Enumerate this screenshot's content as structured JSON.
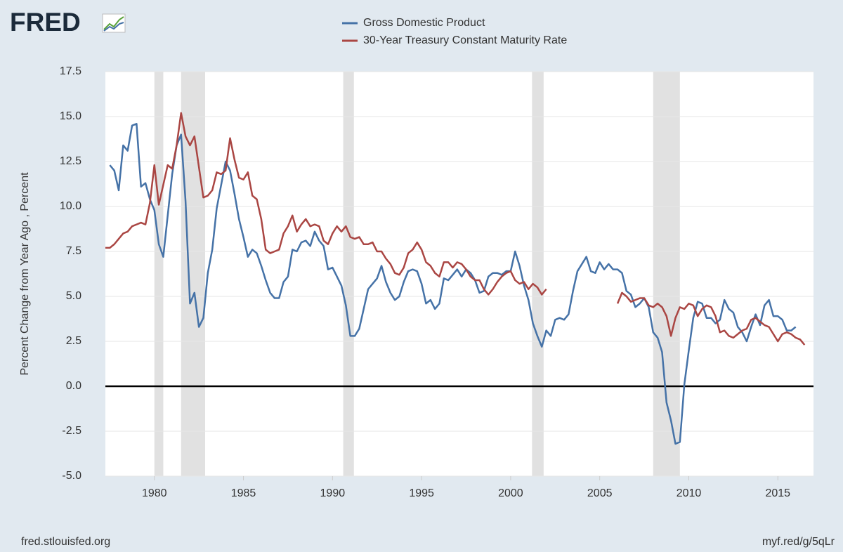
{
  "logo": "FRED",
  "source": "fred.stlouisfed.org",
  "link": "myf.red/g/5qLr",
  "chart_data": {
    "type": "line",
    "ylabel": "Percent Change from Year Ago , Percent",
    "xlim": [
      1977.25,
      2017.0
    ],
    "ylim": [
      -5,
      17.5
    ],
    "xticks": [
      1980,
      1985,
      1990,
      1995,
      2000,
      2005,
      2010,
      2015
    ],
    "yticks": [
      {
        "value": -5,
        "label": "-5.0"
      },
      -2.5,
      {
        "value": 0,
        "label": "0.0"
      },
      2.5,
      {
        "value": 5,
        "label": "5.0"
      },
      7.5,
      {
        "value": 10,
        "label": "10.0"
      },
      12.5,
      {
        "value": 15,
        "label": "15.0"
      },
      17.5
    ],
    "grid": true,
    "recessions": [
      [
        1980.0,
        1980.5
      ],
      [
        1981.5,
        1982.85
      ],
      [
        1990.6,
        1991.2
      ],
      [
        2001.2,
        2001.85
      ],
      [
        2008.0,
        2009.5
      ]
    ],
    "recession_color": "#e1e1e1",
    "series": [
      {
        "name": "Gross Domestic Product",
        "color": "#4572a7",
        "x": [
          1977.5,
          1977.75,
          1978,
          1978.25,
          1978.5,
          1978.75,
          1979,
          1979.25,
          1979.5,
          1979.75,
          1980,
          1980.25,
          1980.5,
          1980.75,
          1981,
          1981.25,
          1981.5,
          1981.75,
          1982,
          1982.25,
          1982.5,
          1982.75,
          1983,
          1983.25,
          1983.5,
          1983.75,
          1984,
          1984.25,
          1984.5,
          1984.75,
          1985,
          1985.25,
          1985.5,
          1985.75,
          1986,
          1986.25,
          1986.5,
          1986.75,
          1987,
          1987.25,
          1987.5,
          1987.75,
          1988,
          1988.25,
          1988.5,
          1988.75,
          1989,
          1989.25,
          1989.5,
          1989.75,
          1990,
          1990.25,
          1990.5,
          1990.75,
          1991,
          1991.25,
          1991.5,
          1991.75,
          1992,
          1992.25,
          1992.5,
          1992.75,
          1993,
          1993.25,
          1993.5,
          1993.75,
          1994,
          1994.25,
          1994.5,
          1994.75,
          1995,
          1995.25,
          1995.5,
          1995.75,
          1996,
          1996.25,
          1996.5,
          1996.75,
          1997,
          1997.25,
          1997.5,
          1997.75,
          1998,
          1998.25,
          1998.5,
          1998.75,
          1999,
          1999.25,
          1999.5,
          1999.75,
          2000,
          2000.25,
          2000.5,
          2000.75,
          2001,
          2001.25,
          2001.5,
          2001.75,
          2002,
          2002.25,
          2002.5,
          2002.75,
          2003,
          2003.25,
          2003.5,
          2003.75,
          2004,
          2004.25,
          2004.5,
          2004.75,
          2005,
          2005.25,
          2005.5,
          2005.75,
          2006,
          2006.25,
          2006.5,
          2006.75,
          2007,
          2007.25,
          2007.5,
          2007.75,
          2008,
          2008.25,
          2008.5,
          2008.75,
          2009,
          2009.25,
          2009.5,
          2009.75,
          2010,
          2010.25,
          2010.5,
          2010.75,
          2011,
          2011.25,
          2011.5,
          2011.75,
          2012,
          2012.25,
          2012.5,
          2012.75,
          2013,
          2013.25,
          2013.5,
          2013.75,
          2014,
          2014.25,
          2014.5,
          2014.75,
          2015,
          2015.25,
          2015.5,
          2015.75,
          2016
        ],
        "values": [
          12.3,
          12.0,
          10.9,
          13.4,
          13.1,
          14.5,
          14.6,
          11.1,
          11.3,
          10.4,
          9.8,
          7.9,
          7.2,
          9.5,
          11.8,
          13.4,
          14.0,
          10.3,
          4.6,
          5.2,
          3.3,
          3.8,
          6.3,
          7.6,
          9.9,
          11.2,
          12.5,
          12.0,
          10.7,
          9.3,
          8.3,
          7.2,
          7.6,
          7.4,
          6.7,
          5.9,
          5.2,
          4.9,
          4.9,
          5.8,
          6.1,
          7.6,
          7.5,
          8.0,
          8.1,
          7.8,
          8.6,
          8.1,
          7.8,
          6.5,
          6.6,
          6.1,
          5.6,
          4.5,
          2.8,
          2.8,
          3.2,
          4.3,
          5.4,
          5.7,
          6.0,
          6.7,
          5.8,
          5.2,
          4.8,
          5.0,
          5.8,
          6.4,
          6.5,
          6.4,
          5.7,
          4.6,
          4.8,
          4.3,
          4.6,
          6.0,
          5.9,
          6.2,
          6.5,
          6.1,
          6.5,
          6.3,
          5.9,
          5.2,
          5.3,
          6.1,
          6.3,
          6.3,
          6.2,
          6.4,
          6.4,
          7.5,
          6.7,
          5.6,
          4.8,
          3.5,
          2.8,
          2.2,
          3.1,
          2.8,
          3.7,
          3.8,
          3.7,
          4.0,
          5.3,
          6.4,
          6.8,
          7.2,
          6.4,
          6.3,
          6.9,
          6.5,
          6.8,
          6.5,
          6.5,
          6.3,
          5.3,
          5.1,
          4.4,
          4.6,
          4.9,
          4.4,
          3.0,
          2.7,
          1.9,
          -0.9,
          -1.9,
          -3.2,
          -3.1,
          0.1,
          2.0,
          3.8,
          4.7,
          4.6,
          3.8,
          3.8,
          3.5,
          3.7,
          4.8,
          4.3,
          4.1,
          3.3,
          3.0,
          2.5,
          3.3,
          4.0,
          3.4,
          4.5,
          4.8,
          3.9,
          3.9,
          3.7,
          3.1,
          3.1,
          3.3
        ]
      },
      {
        "name": "30-Year Treasury Constant Maturity Rate",
        "color": "#aa4643",
        "x": [
          1977.25,
          1977.5,
          1977.75,
          1978,
          1978.25,
          1978.5,
          1978.75,
          1979,
          1979.25,
          1979.5,
          1979.75,
          1980,
          1980.25,
          1980.5,
          1980.75,
          1981,
          1981.25,
          1981.5,
          1981.75,
          1982,
          1982.25,
          1982.5,
          1982.75,
          1983,
          1983.25,
          1983.5,
          1983.75,
          1984,
          1984.25,
          1984.5,
          1984.75,
          1985,
          1985.25,
          1985.5,
          1985.75,
          1986,
          1986.25,
          1986.5,
          1986.75,
          1987,
          1987.25,
          1987.5,
          1987.75,
          1988,
          1988.25,
          1988.5,
          1988.75,
          1989,
          1989.25,
          1989.5,
          1989.75,
          1990,
          1990.25,
          1990.5,
          1990.75,
          1991,
          1991.25,
          1991.5,
          1991.75,
          1992,
          1992.25,
          1992.5,
          1992.75,
          1993,
          1993.25,
          1993.5,
          1993.75,
          1994,
          1994.25,
          1994.5,
          1994.75,
          1995,
          1995.25,
          1995.5,
          1995.75,
          1996,
          1996.25,
          1996.5,
          1996.75,
          1997,
          1997.25,
          1997.5,
          1997.75,
          1998,
          1998.25,
          1998.5,
          1998.75,
          1999,
          1999.25,
          1999.5,
          1999.75,
          2000,
          2000.25,
          2000.5,
          2000.75,
          2001,
          2001.25,
          2001.5,
          2001.75,
          2002,
          2004,
          2006,
          2006.25,
          2006.5,
          2006.75,
          2007,
          2007.25,
          2007.5,
          2007.75,
          2008,
          2008.25,
          2008.5,
          2008.75,
          2009,
          2009.25,
          2009.5,
          2009.75,
          2010,
          2010.25,
          2010.5,
          2010.75,
          2011,
          2011.25,
          2011.5,
          2011.75,
          2012,
          2012.25,
          2012.5,
          2012.75,
          2013,
          2013.25,
          2013.5,
          2013.75,
          2014,
          2014.25,
          2014.5,
          2014.75,
          2015,
          2015.25,
          2015.5,
          2015.75,
          2016,
          2016.25,
          2016.5
        ],
        "values": [
          7.7,
          7.7,
          7.9,
          8.2,
          8.5,
          8.6,
          8.9,
          9.0,
          9.1,
          9.0,
          10.2,
          12.3,
          10.1,
          11.2,
          12.3,
          12.1,
          13.4,
          15.2,
          13.9,
          13.4,
          13.9,
          12.2,
          10.5,
          10.6,
          10.9,
          11.9,
          11.8,
          12.0,
          13.8,
          12.6,
          11.6,
          11.5,
          11.9,
          10.6,
          10.4,
          9.3,
          7.6,
          7.4,
          7.5,
          7.6,
          8.5,
          8.9,
          9.5,
          8.6,
          9.0,
          9.3,
          8.9,
          9.0,
          8.9,
          8.1,
          7.9,
          8.5,
          8.9,
          8.6,
          8.9,
          8.3,
          8.2,
          8.3,
          7.9,
          7.9,
          8.0,
          7.5,
          7.5,
          7.1,
          6.8,
          6.3,
          6.2,
          6.6,
          7.4,
          7.6,
          8.0,
          7.6,
          6.9,
          6.7,
          6.3,
          6.1,
          6.9,
          6.9,
          6.6,
          6.9,
          6.8,
          6.5,
          6.1,
          5.9,
          5.9,
          5.4,
          5.1,
          5.4,
          5.8,
          6.1,
          6.3,
          6.4,
          5.9,
          5.7,
          5.8,
          5.4,
          5.7,
          5.5,
          5.1,
          5.4,
          null,
          4.6,
          5.2,
          5.0,
          4.7,
          4.8,
          4.9,
          4.9,
          4.5,
          4.4,
          4.6,
          4.4,
          3.9,
          2.8,
          3.8,
          4.4,
          4.3,
          4.6,
          4.5,
          3.9,
          4.3,
          4.5,
          4.4,
          3.9,
          3.0,
          3.1,
          2.8,
          2.7,
          2.9,
          3.1,
          3.2,
          3.7,
          3.8,
          3.6,
          3.4,
          3.3,
          2.9,
          2.5,
          2.9,
          3.0,
          2.9,
          2.7,
          2.6,
          2.3
        ]
      }
    ]
  }
}
